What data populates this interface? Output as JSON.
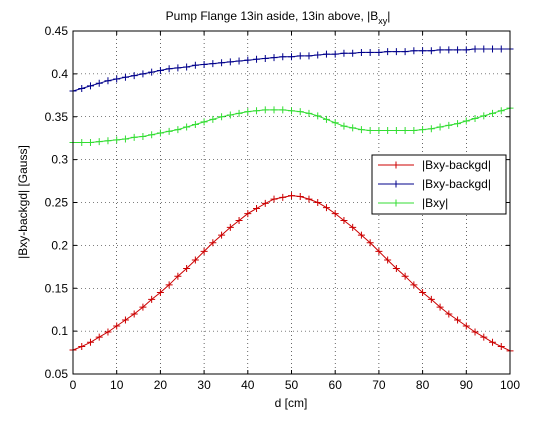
{
  "chart_data": {
    "type": "line",
    "title": "Pump Flange 13in aside, 13in above, |B",
    "title_subscript": "xy",
    "title_suffix": "|",
    "xlabel": "d [cm]",
    "ylabel": "|Bxy-backgd| [Gauss]",
    "xlim": [
      0,
      100
    ],
    "ylim": [
      0.05,
      0.45
    ],
    "xticks": [
      0,
      10,
      20,
      30,
      40,
      50,
      60,
      70,
      80,
      90,
      100
    ],
    "yticks": [
      0.05,
      0.1,
      0.15,
      0.2,
      0.25,
      0.3,
      0.35,
      0.4,
      0.45
    ],
    "xtick_labels": [
      "0",
      "10",
      "20",
      "30",
      "40",
      "50",
      "60",
      "70",
      "80",
      "90",
      "100"
    ],
    "ytick_labels": [
      "0.05",
      "0.1",
      "0.15",
      "0.2",
      "0.25",
      "0.3",
      "0.35",
      "0.4",
      "0.45"
    ],
    "grid": true,
    "legend_position": "right",
    "marker": "+",
    "x": [
      0,
      2,
      4,
      6,
      8,
      10,
      12,
      14,
      16,
      18,
      20,
      22,
      24,
      26,
      28,
      30,
      32,
      34,
      36,
      38,
      40,
      42,
      44,
      46,
      48,
      50,
      52,
      54,
      56,
      58,
      60,
      62,
      64,
      66,
      68,
      70,
      72,
      74,
      76,
      78,
      80,
      82,
      84,
      86,
      88,
      90,
      92,
      94,
      96,
      98,
      100
    ],
    "series": [
      {
        "name": "|Bxy-backgd|",
        "color": "#cc0000",
        "values": [
          0.078,
          0.082,
          0.087,
          0.093,
          0.099,
          0.106,
          0.113,
          0.12,
          0.128,
          0.137,
          0.145,
          0.154,
          0.164,
          0.173,
          0.183,
          0.193,
          0.203,
          0.212,
          0.221,
          0.229,
          0.237,
          0.243,
          0.249,
          0.254,
          0.256,
          0.258,
          0.257,
          0.254,
          0.25,
          0.244,
          0.237,
          0.229,
          0.221,
          0.212,
          0.203,
          0.193,
          0.183,
          0.173,
          0.164,
          0.154,
          0.145,
          0.137,
          0.128,
          0.12,
          0.113,
          0.106,
          0.099,
          0.093,
          0.087,
          0.082,
          0.077
        ]
      },
      {
        "name": "|Bxy-backgd|",
        "color": "#00008b",
        "values": [
          0.38,
          0.383,
          0.386,
          0.389,
          0.392,
          0.394,
          0.396,
          0.398,
          0.4,
          0.402,
          0.404,
          0.406,
          0.407,
          0.408,
          0.41,
          0.411,
          0.412,
          0.413,
          0.414,
          0.415,
          0.416,
          0.417,
          0.418,
          0.419,
          0.42,
          0.42,
          0.421,
          0.421,
          0.422,
          0.423,
          0.423,
          0.424,
          0.424,
          0.425,
          0.425,
          0.425,
          0.426,
          0.426,
          0.426,
          0.427,
          0.427,
          0.427,
          0.428,
          0.428,
          0.428,
          0.428,
          0.429,
          0.429,
          0.429,
          0.429,
          0.429
        ]
      },
      {
        "name": "|Bxy|",
        "color": "#33dd33",
        "values": [
          0.32,
          0.32,
          0.32,
          0.321,
          0.322,
          0.323,
          0.324,
          0.326,
          0.327,
          0.329,
          0.331,
          0.333,
          0.335,
          0.338,
          0.341,
          0.344,
          0.347,
          0.35,
          0.352,
          0.354,
          0.356,
          0.357,
          0.358,
          0.358,
          0.358,
          0.357,
          0.356,
          0.354,
          0.351,
          0.347,
          0.343,
          0.339,
          0.337,
          0.335,
          0.334,
          0.334,
          0.334,
          0.334,
          0.334,
          0.334,
          0.335,
          0.336,
          0.338,
          0.34,
          0.342,
          0.345,
          0.348,
          0.351,
          0.354,
          0.357,
          0.36
        ]
      }
    ]
  }
}
